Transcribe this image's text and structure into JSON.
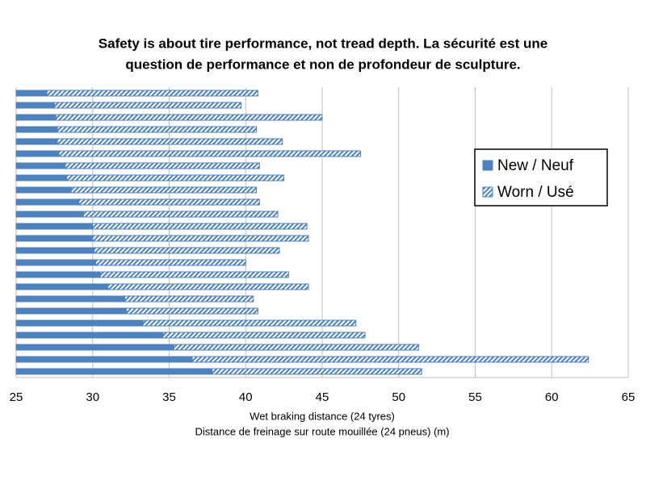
{
  "chart_data": {
    "type": "hbar-overlap",
    "title": [
      "Safety is about tire performance, not tread depth. La sécurité est une",
      "question de performance et non de profondeur de sculpture."
    ],
    "xlabel": [
      "Wet braking distance (24 tyres)",
      "Distance de freinage sur route mouillée (24 pneus) (m)"
    ],
    "xlim": [
      25,
      65
    ],
    "xticks": [
      25,
      30,
      35,
      40,
      45,
      50,
      55,
      60,
      65
    ],
    "grid": true,
    "legend": "right",
    "series": [
      {
        "name": "New / Neuf",
        "color": "#4f81bd",
        "pattern": "solid",
        "values": [
          27.0,
          27.5,
          27.6,
          27.7,
          27.7,
          27.8,
          28.2,
          28.3,
          28.6,
          29.1,
          29.4,
          30.0,
          30.0,
          30.1,
          30.2,
          30.5,
          31.0,
          32.1,
          32.2,
          33.3,
          34.6,
          35.3,
          36.5,
          37.8
        ]
      },
      {
        "name": "Worn / Usé",
        "color": "#4f81bd",
        "pattern": "hatch",
        "values": [
          40.8,
          39.7,
          45.0,
          40.7,
          42.4,
          47.5,
          40.9,
          42.5,
          40.7,
          40.9,
          42.1,
          44.0,
          44.1,
          42.2,
          40.0,
          42.8,
          44.1,
          40.5,
          40.8,
          47.2,
          47.8,
          51.3,
          62.4,
          51.5
        ]
      }
    ]
  }
}
